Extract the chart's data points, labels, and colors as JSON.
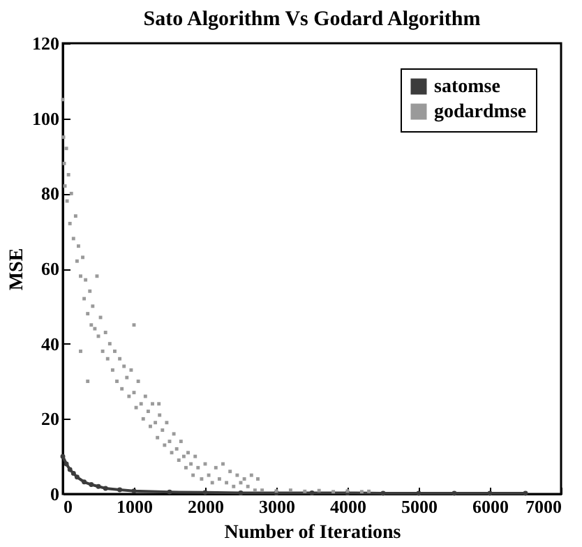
{
  "chart_data": {
    "type": "line",
    "title": "Sato Algorithm Vs Godard Algorithm",
    "xlabel": "Number of Iterations",
    "ylabel": "MSE",
    "xlim": [
      0,
      7000
    ],
    "ylim": [
      0,
      120
    ],
    "xticks": [
      0,
      1000,
      2000,
      3000,
      4000,
      5000,
      6000,
      7000
    ],
    "yticks": [
      0,
      20,
      40,
      60,
      80,
      100,
      120
    ],
    "grid": false,
    "legend": "top right",
    "series": [
      {
        "name": "satomse",
        "color": "#3c3c3c",
        "marker": "circle",
        "x": [
          0,
          50,
          100,
          150,
          200,
          300,
          400,
          500,
          600,
          800,
          1000,
          1500,
          2000,
          2500,
          3000,
          3500,
          4000,
          4500,
          5000,
          5500,
          6000,
          6500
        ],
        "values": [
          10,
          8,
          6.5,
          5.5,
          4.5,
          3.2,
          2.5,
          2,
          1.5,
          1.1,
          0.8,
          0.5,
          0.4,
          0.3,
          0.3,
          0.3,
          0.3,
          0.2,
          0.2,
          0.2,
          0.2,
          0.2
        ]
      },
      {
        "name": "godardmse",
        "type": "scatter",
        "color": "#9a9a9a",
        "marker": "square",
        "x": [
          0,
          10,
          20,
          30,
          50,
          60,
          80,
          100,
          120,
          150,
          180,
          200,
          220,
          250,
          250,
          280,
          300,
          320,
          350,
          350,
          380,
          400,
          420,
          450,
          480,
          500,
          530,
          560,
          600,
          630,
          660,
          700,
          730,
          760,
          800,
          830,
          860,
          900,
          930,
          960,
          1000,
          1000,
          1030,
          1060,
          1100,
          1130,
          1160,
          1200,
          1230,
          1260,
          1300,
          1330,
          1350,
          1360,
          1400,
          1430,
          1460,
          1500,
          1530,
          1560,
          1600,
          1630,
          1660,
          1700,
          1730,
          1760,
          1800,
          1830,
          1860,
          1900,
          1950,
          2000,
          2050,
          2100,
          2150,
          2200,
          2250,
          2300,
          2350,
          2400,
          2450,
          2500,
          2550,
          2600,
          2650,
          2700,
          2740,
          2800,
          3000,
          3200,
          3400,
          3600,
          3800,
          4000,
          4200,
          4300
        ],
        "values": [
          105,
          95,
          88,
          82,
          92,
          78,
          85,
          72,
          80,
          68,
          74,
          62,
          66,
          58,
          38,
          63,
          52,
          57,
          48,
          30,
          54,
          45,
          50,
          44,
          58,
          42,
          47,
          38,
          43,
          36,
          40,
          33,
          38,
          30,
          36,
          28,
          34,
          31,
          26,
          33,
          27,
          45,
          23,
          30,
          24,
          20,
          26,
          22,
          18,
          24,
          19,
          15,
          24,
          21,
          17,
          13,
          19,
          14,
          11,
          16,
          12,
          9,
          14,
          10,
          7,
          11,
          8,
          5,
          10,
          7,
          4,
          8,
          5,
          3,
          7,
          4,
          8,
          3,
          6,
          2,
          5,
          3,
          4,
          2,
          5,
          1,
          4,
          1,
          0.8,
          1,
          0.7,
          0.9,
          0.6,
          0.8,
          0.6,
          0.7
        ]
      }
    ]
  }
}
